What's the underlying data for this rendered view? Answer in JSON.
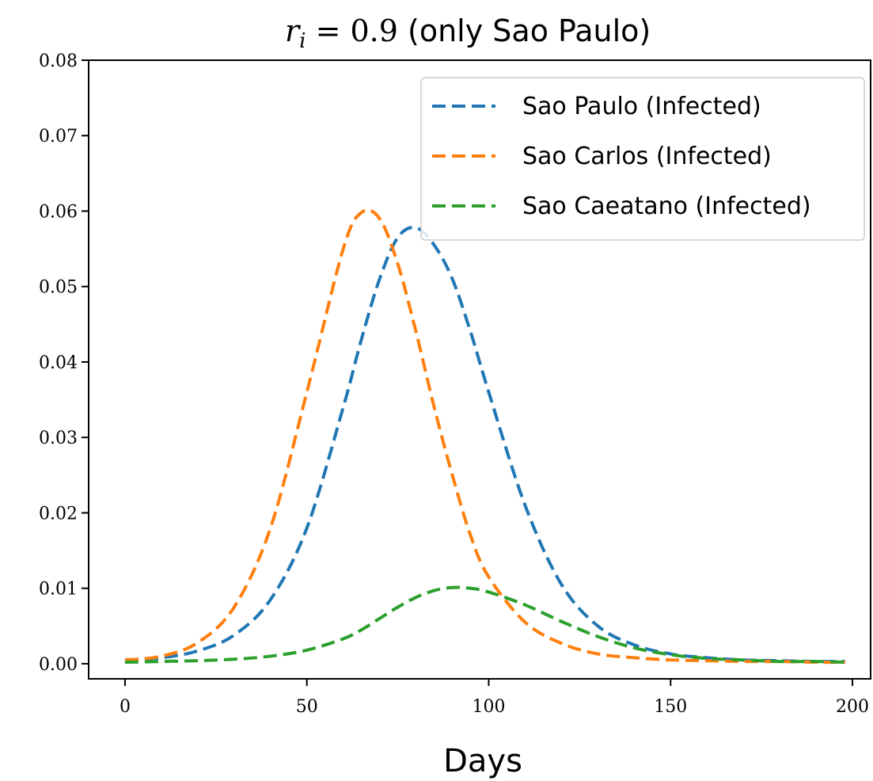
{
  "chart_data": {
    "type": "line",
    "title": {
      "math_var": "r",
      "math_sub": "i",
      "math_eq": " = 0.9",
      "suffix": " (only Sao Paulo)"
    },
    "xlabel": "Days",
    "ylabel": "",
    "xlim": [
      -10,
      205
    ],
    "ylim": [
      -0.002,
      0.08
    ],
    "x_ticks": [
      0,
      50,
      100,
      150,
      200
    ],
    "x_tick_labels": [
      "0",
      "50",
      "100",
      "150",
      "200"
    ],
    "y_ticks": [
      0.0,
      0.01,
      0.02,
      0.03,
      0.04,
      0.05,
      0.06,
      0.07,
      0.08
    ],
    "y_tick_labels": [
      "0.00",
      "0.01",
      "0.02",
      "0.03",
      "0.04",
      "0.05",
      "0.06",
      "0.07",
      "0.08"
    ],
    "grid": false,
    "legend_position": "top-right",
    "line_style": "dashed",
    "x": [
      0,
      10,
      20,
      30,
      40,
      50,
      60,
      65,
      70,
      75,
      80,
      85,
      90,
      95,
      100,
      110,
      120,
      130,
      140,
      150,
      160,
      170,
      180,
      190,
      198
    ],
    "series": [
      {
        "name": "Sao Paulo (Infected)",
        "color": "#1f77b4",
        "values": [
          0.0005,
          0.0008,
          0.0017,
          0.0038,
          0.0085,
          0.018,
          0.034,
          0.043,
          0.051,
          0.0565,
          0.0578,
          0.0555,
          0.051,
          0.044,
          0.036,
          0.021,
          0.0105,
          0.005,
          0.0025,
          0.0013,
          0.0008,
          0.0005,
          0.0004,
          0.0003,
          0.0003
        ]
      },
      {
        "name": "Sao Carlos (Infected)",
        "color": "#ff7f0e",
        "values": [
          0.0005,
          0.001,
          0.0028,
          0.0075,
          0.018,
          0.036,
          0.055,
          0.0598,
          0.059,
          0.053,
          0.044,
          0.034,
          0.025,
          0.017,
          0.0115,
          0.0055,
          0.0027,
          0.0013,
          0.0008,
          0.0005,
          0.0004,
          0.0003,
          0.0003,
          0.0002,
          0.0002
        ]
      },
      {
        "name": "Sao Caeatano (Infected)",
        "color": "#2ca02c",
        "values": [
          0.0002,
          0.0003,
          0.0004,
          0.0006,
          0.001,
          0.0018,
          0.0033,
          0.0045,
          0.006,
          0.0075,
          0.0088,
          0.0097,
          0.0101,
          0.01,
          0.0095,
          0.0078,
          0.0056,
          0.0036,
          0.0021,
          0.0012,
          0.0007,
          0.0005,
          0.0003,
          0.0003,
          0.0002
        ]
      }
    ]
  }
}
